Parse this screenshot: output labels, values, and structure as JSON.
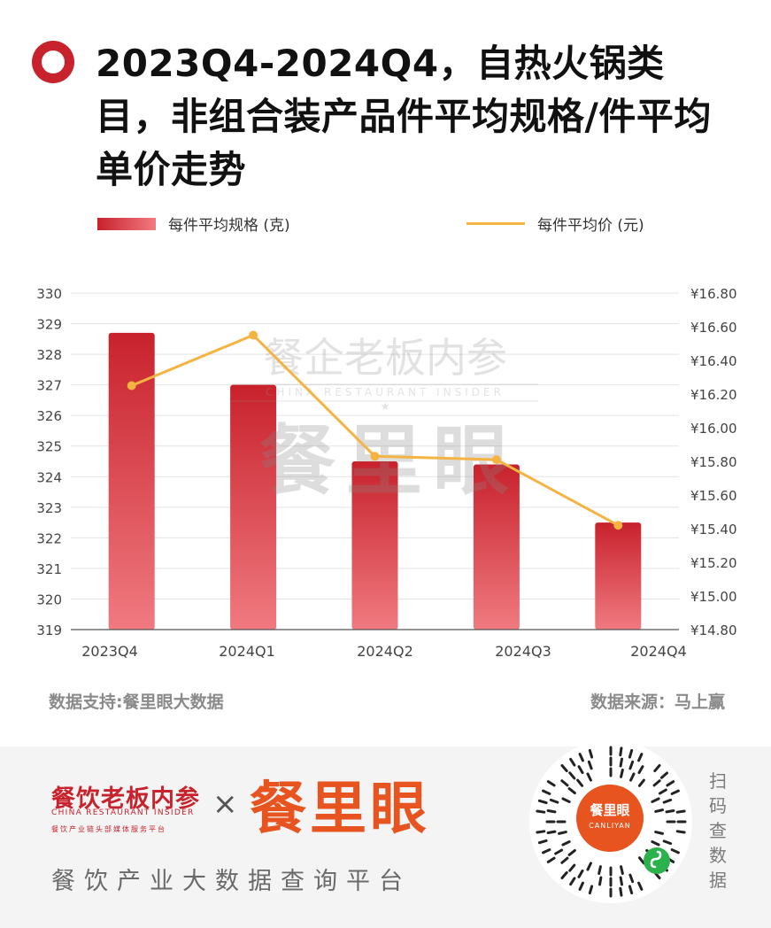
{
  "title": "2023Q4-2024Q4，自热火锅类目，非组合装产品件平均规格/件平均单价走势",
  "legend": {
    "bar_label": "每件平均规格 (克)",
    "line_label": "每件平均价 (元)"
  },
  "watermark": {
    "cn": "餐企老板内参",
    "en": "CHINA RESTAURANT INSIDER",
    "brand": "餐里眼"
  },
  "source_left": "数据支持:餐里眼大数据",
  "source_right": "数据来源：马上赢",
  "chart_data": {
    "type": "bar",
    "categories": [
      "2023Q4",
      "2024Q1",
      "2024Q2",
      "2024Q3",
      "2024Q4"
    ],
    "series": [
      {
        "name": "每件平均规格 (克)",
        "type": "bar",
        "axis": "left",
        "values": [
          328.7,
          327.0,
          324.5,
          324.4,
          322.5
        ]
      },
      {
        "name": "每件平均价 (元)",
        "type": "line",
        "axis": "right",
        "values": [
          16.25,
          16.55,
          15.83,
          15.81,
          15.42
        ]
      }
    ],
    "ylim_left": [
      319,
      330
    ],
    "yticks_left": [
      "319",
      "320",
      "321",
      "322",
      "323",
      "324",
      "325",
      "326",
      "327",
      "328",
      "329",
      "330"
    ],
    "ylim_right": [
      14.8,
      16.8
    ],
    "yticks_right": [
      "¥14.80",
      "¥15.00",
      "¥15.20",
      "¥15.40",
      "¥15.60",
      "¥15.80",
      "¥16.00",
      "¥16.20",
      "¥16.40",
      "¥16.60",
      "¥16.80"
    ],
    "colors": {
      "bar_top": "#c8222c",
      "bar_bottom": "#f07a80",
      "line": "#f5b342"
    },
    "grid": true,
    "legend_position": "top"
  },
  "footer": {
    "brand1": "餐饮老板内参",
    "brand1_en": "CHINA RESTAURANT INSIDER",
    "brand1_sub": "餐饮产业链头部媒体服务平台",
    "times": "×",
    "brand2": "餐里眼",
    "tagline": "餐饮产业大数据查询平台",
    "qr_center_cn": "餐里眼",
    "qr_center_en": "CANLIYAN",
    "scan_label": "扫码查数据"
  }
}
